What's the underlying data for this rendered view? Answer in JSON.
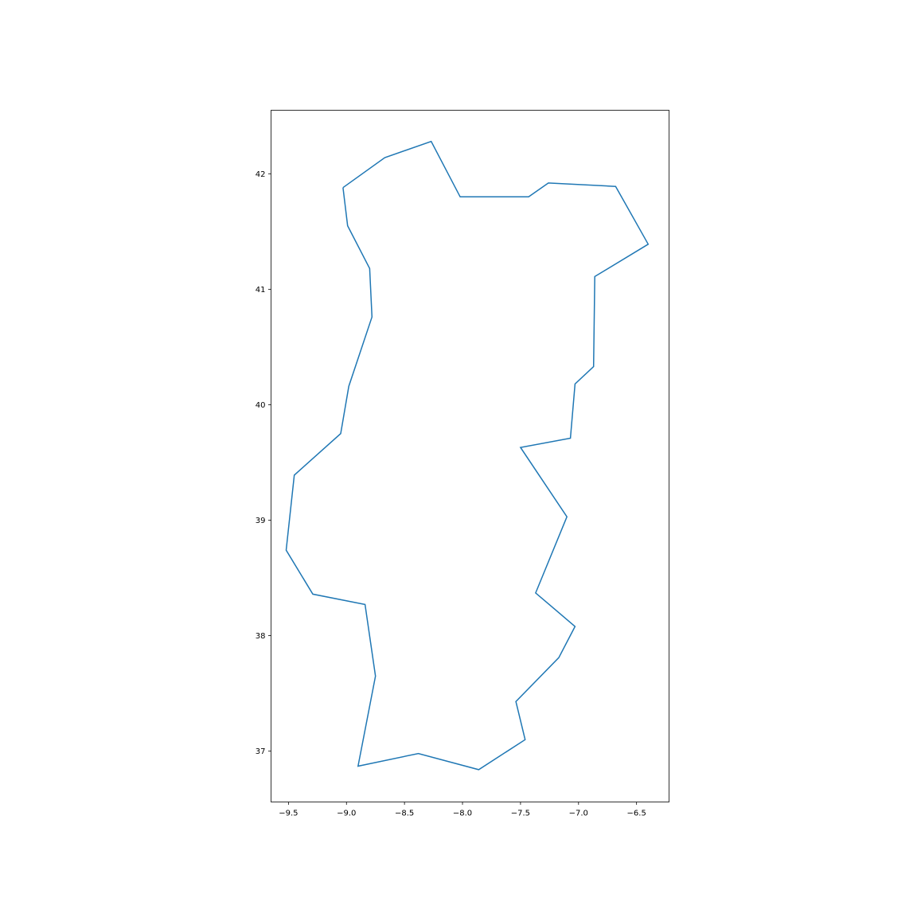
{
  "chart_data": {
    "type": "line",
    "title": "",
    "xlabel": "",
    "ylabel": "",
    "xlim": [
      -9.65,
      -6.22
    ],
    "ylim": [
      36.56,
      42.55
    ],
    "grid": false,
    "legend": "none",
    "x_ticks": [
      -9.5,
      -9.0,
      -8.5,
      -8.0,
      -7.5,
      -7.0,
      -6.5
    ],
    "x_tick_labels": [
      "−9.5",
      "−9.0",
      "−8.5",
      "−8.0",
      "−7.5",
      "−7.0",
      "−6.5"
    ],
    "y_ticks": [
      37,
      38,
      39,
      40,
      41,
      42
    ],
    "y_tick_labels": [
      "37",
      "38",
      "39",
      "40",
      "41",
      "42"
    ],
    "series": [
      {
        "color": "#1f77b4",
        "points": [
          [
            -9.03,
            41.88
          ],
          [
            -8.67,
            42.14
          ],
          [
            -8.27,
            42.28
          ],
          [
            -8.02,
            41.8
          ],
          [
            -7.43,
            41.8
          ],
          [
            -7.26,
            41.92
          ],
          [
            -6.68,
            41.89
          ],
          [
            -6.4,
            41.39
          ],
          [
            -6.86,
            41.11
          ],
          [
            -6.87,
            40.33
          ],
          [
            -7.03,
            40.18
          ],
          [
            -7.07,
            39.71
          ],
          [
            -7.5,
            39.63
          ],
          [
            -7.1,
            39.03
          ],
          [
            -7.37,
            38.37
          ],
          [
            -7.03,
            38.08
          ],
          [
            -7.17,
            37.81
          ],
          [
            -7.54,
            37.43
          ],
          [
            -7.46,
            37.1
          ],
          [
            -7.86,
            36.84
          ],
          [
            -8.38,
            36.98
          ],
          [
            -8.9,
            36.87
          ],
          [
            -8.75,
            37.65
          ],
          [
            -8.84,
            38.27
          ],
          [
            -9.29,
            38.36
          ],
          [
            -9.52,
            38.74
          ],
          [
            -9.45,
            39.39
          ],
          [
            -9.05,
            39.75
          ],
          [
            -8.98,
            40.16
          ],
          [
            -8.78,
            40.76
          ],
          [
            -8.8,
            41.18
          ],
          [
            -8.99,
            41.55
          ],
          [
            -9.03,
            41.88
          ]
        ]
      }
    ]
  }
}
